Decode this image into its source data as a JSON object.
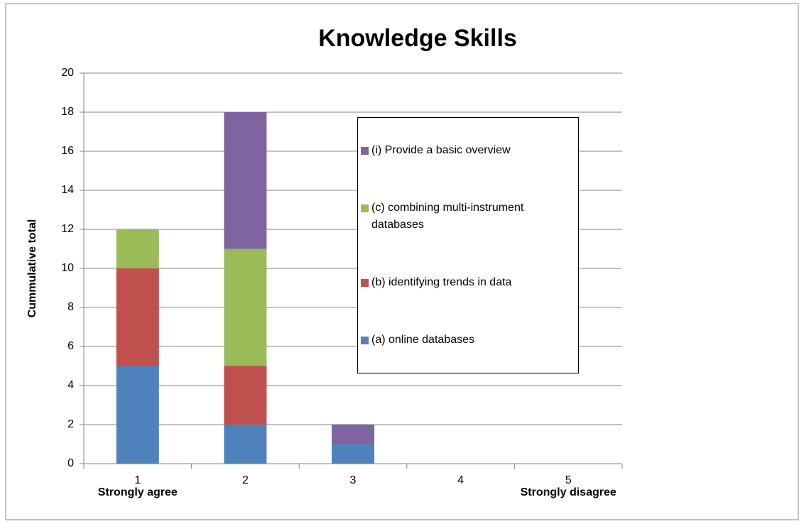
{
  "chart_data": {
    "type": "stacked_bar",
    "title": "Knowledge Skills",
    "y_label": "Cummulative total",
    "categories": [
      "1",
      "2",
      "3",
      "4",
      "5"
    ],
    "annotations": [
      "Strongly agree",
      "Strongly disagree"
    ],
    "series": [
      {
        "name": "(a) online databases",
        "color": "#4f81bd",
        "values": [
          5,
          2,
          1,
          0,
          0
        ]
      },
      {
        "name": "(b) identifying trends in data",
        "color": "#c0504d",
        "values": [
          5,
          3,
          0,
          0,
          0
        ]
      },
      {
        "name": "(c) combining multi-instrument databases",
        "color": "#9bbb59",
        "values": [
          2,
          6,
          0,
          0,
          0
        ]
      },
      {
        "name": "(i) Provide a basic overview",
        "color": "#8064a2",
        "values": [
          0,
          7,
          1,
          0,
          0
        ]
      }
    ],
    "ylim": [
      0,
      20
    ],
    "yticks": [
      0,
      2,
      4,
      6,
      8,
      10,
      12,
      14,
      16,
      18,
      20
    ],
    "grid": true,
    "legend": "right"
  }
}
